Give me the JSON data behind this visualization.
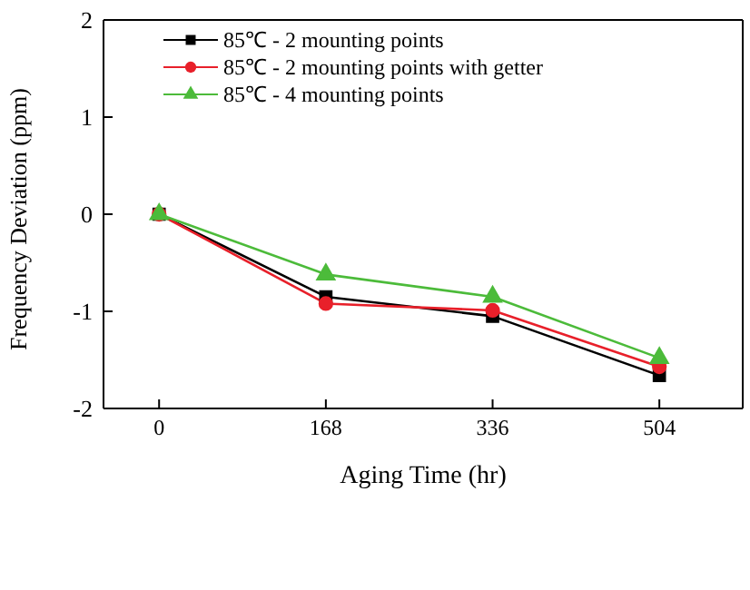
{
  "chart_data": {
    "type": "line",
    "xlabel": "Aging Time (hr)",
    "ylabel": "Frequency Deviation (ppm)",
    "x": [
      0,
      168,
      336,
      504
    ],
    "series": [
      {
        "name": "85℃ - 2 mounting points",
        "color": "#000000",
        "marker": "square",
        "values": [
          0,
          -0.85,
          -1.05,
          -1.66
        ]
      },
      {
        "name": "85℃ - 2 mounting points with getter",
        "color": "#e8202a",
        "marker": "circle",
        "values": [
          0,
          -0.92,
          -0.99,
          -1.57
        ]
      },
      {
        "name": "85℃ - 4 mounting points",
        "color": "#4cbb3a",
        "marker": "triangle",
        "values": [
          0,
          -0.62,
          -0.85,
          -1.48
        ]
      }
    ],
    "xlim": [
      -56,
      588
    ],
    "xticks": [
      0,
      168,
      336,
      504
    ],
    "ylim": [
      -2,
      2
    ],
    "yticks": [
      -2,
      -1,
      0,
      1,
      2
    ],
    "legend": "top left",
    "line_style": "solid"
  }
}
